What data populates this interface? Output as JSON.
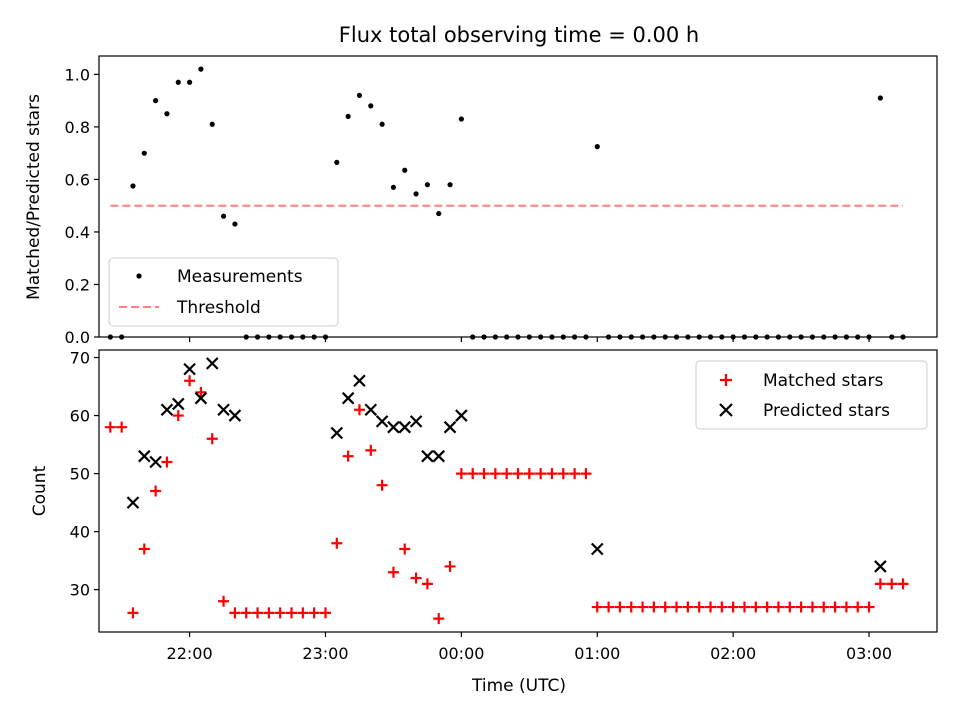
{
  "figure": {
    "title": "Flux total observing time = 0.00 h",
    "xlabel": "Time (UTC)"
  },
  "chart_data": [
    {
      "type": "scatter",
      "ylabel": "Matched/Predicted stars",
      "xlim": [
        "21:20",
        "03:30"
      ],
      "ylim": [
        0,
        1.07
      ],
      "yticks": [
        0.0,
        0.2,
        0.4,
        0.6,
        0.8,
        1.0
      ],
      "xticks": [
        "22:00",
        "23:00",
        "00:00",
        "01:00",
        "02:00",
        "03:00"
      ],
      "grid": false,
      "legend_position": "lower-left",
      "series": [
        {
          "name": "Measurements",
          "kind": "points",
          "color": "#000000",
          "points": [
            [
              "21:25",
              0.0
            ],
            [
              "21:30",
              0.0
            ],
            [
              "21:35",
              0.575
            ],
            [
              "21:40",
              0.7
            ],
            [
              "21:45",
              0.9
            ],
            [
              "21:50",
              0.85
            ],
            [
              "21:55",
              0.97
            ],
            [
              "22:00",
              0.97
            ],
            [
              "22:05",
              1.02
            ],
            [
              "22:10",
              0.81
            ],
            [
              "22:15",
              0.46
            ],
            [
              "22:20",
              0.43
            ],
            [
              "22:25",
              0.0
            ],
            [
              "22:30",
              0.0
            ],
            [
              "22:35",
              0.0
            ],
            [
              "22:40",
              0.0
            ],
            [
              "22:45",
              0.0
            ],
            [
              "22:50",
              0.0
            ],
            [
              "22:55",
              0.0
            ],
            [
              "23:00",
              0.0
            ],
            [
              "23:05",
              0.665
            ],
            [
              "23:10",
              0.84
            ],
            [
              "23:15",
              0.92
            ],
            [
              "23:20",
              0.88
            ],
            [
              "23:25",
              0.81
            ],
            [
              "23:30",
              0.57
            ],
            [
              "23:35",
              0.635
            ],
            [
              "23:40",
              0.545
            ],
            [
              "23:45",
              0.58
            ],
            [
              "23:50",
              0.47
            ],
            [
              "23:55",
              0.58
            ],
            [
              "00:00",
              0.83
            ],
            [
              "00:05",
              0.0
            ],
            [
              "00:10",
              0.0
            ],
            [
              "00:15",
              0.0
            ],
            [
              "00:20",
              0.0
            ],
            [
              "00:25",
              0.0
            ],
            [
              "00:30",
              0.0
            ],
            [
              "00:35",
              0.0
            ],
            [
              "00:40",
              0.0
            ],
            [
              "00:45",
              0.0
            ],
            [
              "00:50",
              0.0
            ],
            [
              "00:55",
              0.0
            ],
            [
              "01:00",
              0.725
            ],
            [
              "01:05",
              0.0
            ],
            [
              "01:10",
              0.0
            ],
            [
              "01:15",
              0.0
            ],
            [
              "01:20",
              0.0
            ],
            [
              "01:25",
              0.0
            ],
            [
              "01:30",
              0.0
            ],
            [
              "01:35",
              0.0
            ],
            [
              "01:40",
              0.0
            ],
            [
              "01:45",
              0.0
            ],
            [
              "01:50",
              0.0
            ],
            [
              "01:55",
              0.0
            ],
            [
              "02:00",
              0.0
            ],
            [
              "02:05",
              0.0
            ],
            [
              "02:10",
              0.0
            ],
            [
              "02:15",
              0.0
            ],
            [
              "02:20",
              0.0
            ],
            [
              "02:25",
              0.0
            ],
            [
              "02:30",
              0.0
            ],
            [
              "02:35",
              0.0
            ],
            [
              "02:40",
              0.0
            ],
            [
              "02:45",
              0.0
            ],
            [
              "02:50",
              0.0
            ],
            [
              "02:55",
              0.0
            ],
            [
              "03:00",
              0.0
            ],
            [
              "03:05",
              0.91
            ],
            [
              "03:10",
              0.0
            ],
            [
              "03:15",
              0.0
            ]
          ]
        },
        {
          "name": "Threshold",
          "kind": "dashed-line",
          "color": "#ff7f7f",
          "points": [
            [
              "21:25",
              0.5
            ],
            [
              "03:15",
              0.5
            ]
          ]
        }
      ]
    },
    {
      "type": "scatter",
      "ylabel": "Count",
      "xlim": [
        "21:20",
        "03:30"
      ],
      "ylim": [
        22.7,
        71.3
      ],
      "yticks": [
        30,
        40,
        50,
        60,
        70
      ],
      "xticks": [
        "22:00",
        "23:00",
        "00:00",
        "01:00",
        "02:00",
        "03:00"
      ],
      "grid": false,
      "legend_position": "upper-right",
      "series": [
        {
          "name": "Matched stars",
          "marker": "plus",
          "color": "#ff0000",
          "points": [
            [
              "21:25",
              58
            ],
            [
              "21:30",
              58
            ],
            [
              "21:35",
              26
            ],
            [
              "21:40",
              37
            ],
            [
              "21:45",
              47
            ],
            [
              "21:50",
              52
            ],
            [
              "21:55",
              60
            ],
            [
              "22:00",
              66
            ],
            [
              "22:05",
              64
            ],
            [
              "22:10",
              56
            ],
            [
              "22:15",
              28
            ],
            [
              "22:20",
              26
            ],
            [
              "22:25",
              26
            ],
            [
              "22:30",
              26
            ],
            [
              "22:35",
              26
            ],
            [
              "22:40",
              26
            ],
            [
              "22:45",
              26
            ],
            [
              "22:50",
              26
            ],
            [
              "22:55",
              26
            ],
            [
              "23:00",
              26
            ],
            [
              "23:05",
              38
            ],
            [
              "23:10",
              53
            ],
            [
              "23:15",
              61
            ],
            [
              "23:20",
              54
            ],
            [
              "23:25",
              48
            ],
            [
              "23:30",
              33
            ],
            [
              "23:35",
              37
            ],
            [
              "23:40",
              32
            ],
            [
              "23:45",
              31
            ],
            [
              "23:50",
              25
            ],
            [
              "23:55",
              34
            ],
            [
              "00:00",
              50
            ],
            [
              "00:05",
              50
            ],
            [
              "00:10",
              50
            ],
            [
              "00:15",
              50
            ],
            [
              "00:20",
              50
            ],
            [
              "00:25",
              50
            ],
            [
              "00:30",
              50
            ],
            [
              "00:35",
              50
            ],
            [
              "00:40",
              50
            ],
            [
              "00:45",
              50
            ],
            [
              "00:50",
              50
            ],
            [
              "00:55",
              50
            ],
            [
              "01:00",
              27
            ],
            [
              "01:05",
              27
            ],
            [
              "01:10",
              27
            ],
            [
              "01:15",
              27
            ],
            [
              "01:20",
              27
            ],
            [
              "01:25",
              27
            ],
            [
              "01:30",
              27
            ],
            [
              "01:35",
              27
            ],
            [
              "01:40",
              27
            ],
            [
              "01:45",
              27
            ],
            [
              "01:50",
              27
            ],
            [
              "01:55",
              27
            ],
            [
              "02:00",
              27
            ],
            [
              "02:05",
              27
            ],
            [
              "02:10",
              27
            ],
            [
              "02:15",
              27
            ],
            [
              "02:20",
              27
            ],
            [
              "02:25",
              27
            ],
            [
              "02:30",
              27
            ],
            [
              "02:35",
              27
            ],
            [
              "02:40",
              27
            ],
            [
              "02:45",
              27
            ],
            [
              "02:50",
              27
            ],
            [
              "02:55",
              27
            ],
            [
              "03:00",
              27
            ],
            [
              "03:05",
              31
            ],
            [
              "03:10",
              31
            ],
            [
              "03:15",
              31
            ]
          ]
        },
        {
          "name": "Predicted stars",
          "marker": "x",
          "color": "#000000",
          "points": [
            [
              "21:35",
              45
            ],
            [
              "21:40",
              53
            ],
            [
              "21:45",
              52
            ],
            [
              "21:50",
              61
            ],
            [
              "21:55",
              62
            ],
            [
              "22:00",
              68
            ],
            [
              "22:05",
              63
            ],
            [
              "22:10",
              69
            ],
            [
              "22:15",
              61
            ],
            [
              "22:20",
              60
            ],
            [
              "23:05",
              57
            ],
            [
              "23:10",
              63
            ],
            [
              "23:15",
              66
            ],
            [
              "23:20",
              61
            ],
            [
              "23:25",
              59
            ],
            [
              "23:30",
              58
            ],
            [
              "23:35",
              58
            ],
            [
              "23:40",
              59
            ],
            [
              "23:45",
              53
            ],
            [
              "23:50",
              53
            ],
            [
              "23:55",
              58
            ],
            [
              "00:00",
              60
            ],
            [
              "01:00",
              37
            ],
            [
              "03:05",
              34
            ]
          ]
        }
      ]
    }
  ]
}
